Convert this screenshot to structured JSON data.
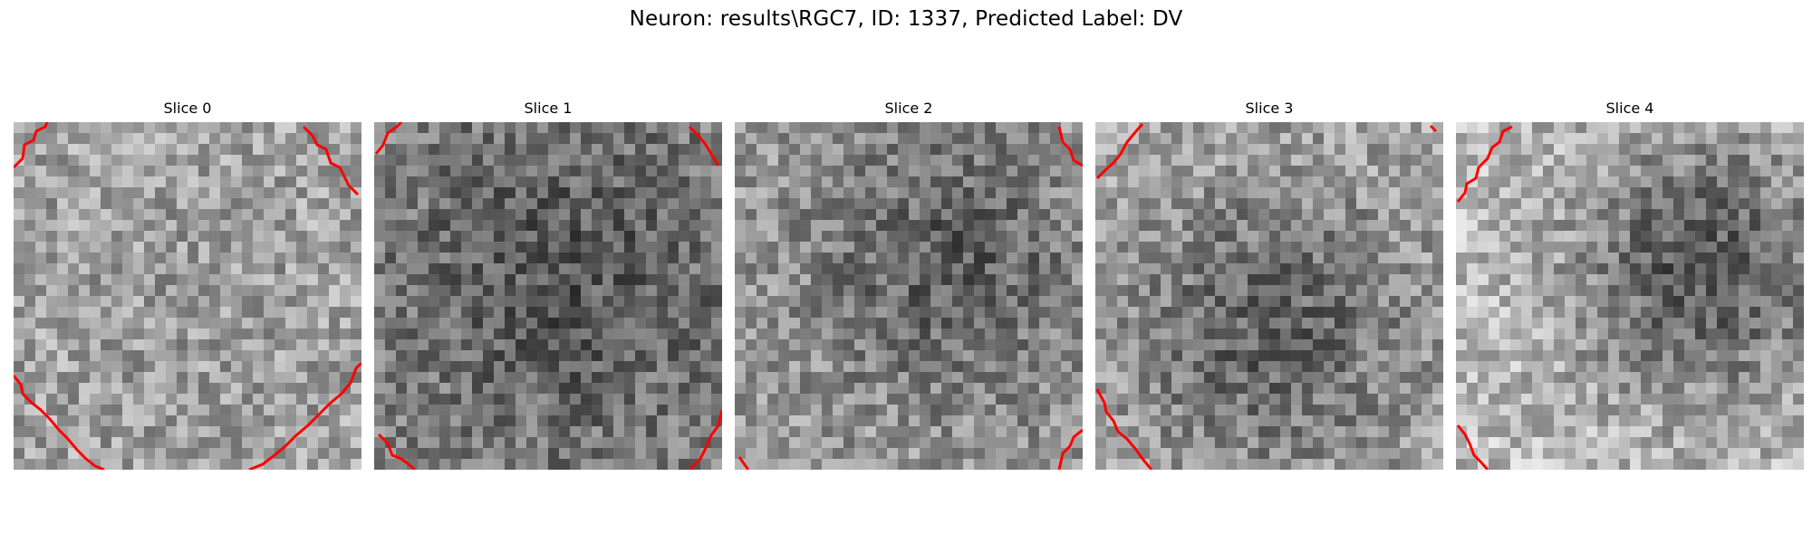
{
  "figure": {
    "title": "Neuron: results\\RGC7, ID: 1337, Predicted Label: DV"
  },
  "panels": [
    {
      "title": "Slice 0",
      "content": "noisy-grayscale-texture",
      "contour_color": "#ff0000"
    },
    {
      "title": "Slice 1",
      "content": "noisy-grayscale-texture",
      "contour_color": "#ff0000"
    },
    {
      "title": "Slice 2",
      "content": "noisy-grayscale-texture",
      "contour_color": "#ff0000"
    },
    {
      "title": "Slice 3",
      "content": "noisy-grayscale-texture",
      "contour_color": "#ff0000"
    },
    {
      "title": "Slice 4",
      "content": "noisy-grayscale-texture",
      "contour_color": "#ff0000"
    }
  ]
}
